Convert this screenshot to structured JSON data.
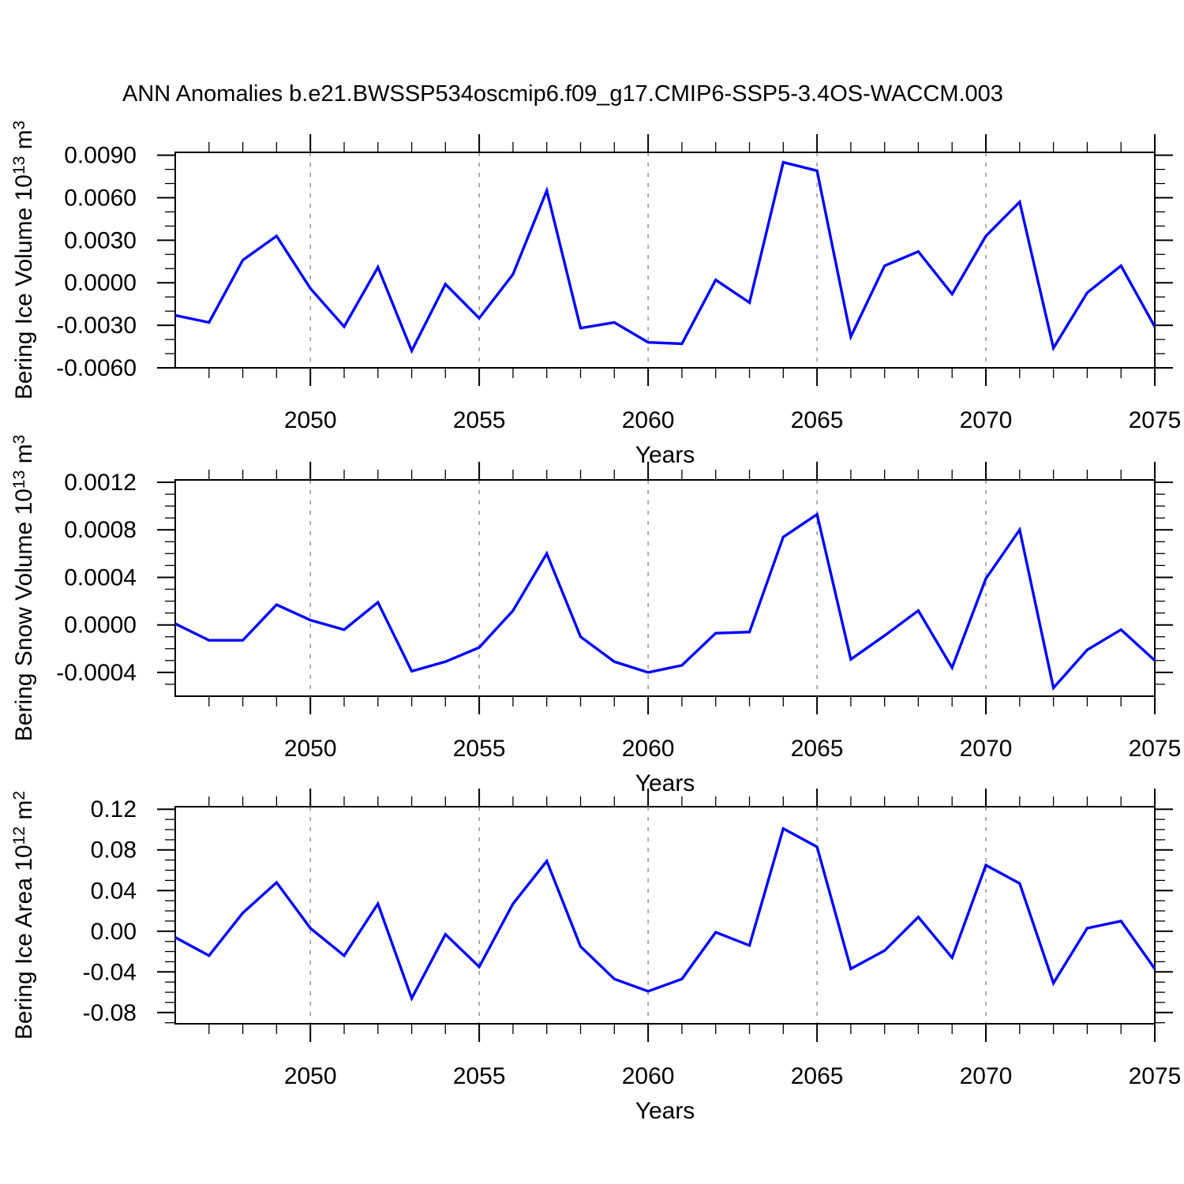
{
  "chart_data": {
    "type": "line",
    "title": "ANN Anomalies b.e21.BWSSP534oscmip6.f09_g17.CMIP6-SSP5-3.4OS-WACCM.003",
    "xlabel": "Years",
    "legend": "none",
    "grid": "vertical-dashed-only",
    "x": [
      2046,
      2047,
      2048,
      2049,
      2050,
      2051,
      2052,
      2053,
      2054,
      2055,
      2056,
      2057,
      2058,
      2059,
      2060,
      2061,
      2062,
      2063,
      2064,
      2065,
      2066,
      2067,
      2068,
      2069,
      2070,
      2071,
      2072,
      2073,
      2074,
      2075
    ],
    "x_axis": {
      "xlim": [
        2046,
        2075
      ],
      "major_ticks": [
        2050,
        2055,
        2060,
        2065,
        2070,
        2075
      ],
      "minor_step_years": 1,
      "gridlines": [
        2050,
        2055,
        2060,
        2065,
        2070
      ]
    },
    "style": {
      "line_color": "#0000ff",
      "grid_color": "#8c8c8c",
      "axis_color": "#000000",
      "background": "#ffffff"
    },
    "panels": [
      {
        "name": "bering-ice-volume",
        "ylabel": "Bering Ice Volume 10^13 m^3",
        "ylabel_parts": [
          {
            "text": "Bering Ice Volume 10"
          },
          {
            "sup": "13"
          },
          {
            "text": " m"
          },
          {
            "sup": "3"
          }
        ],
        "ylim": [
          -0.006,
          0.0092
        ],
        "y_major_ticks": [
          0.009,
          0.006,
          0.003,
          0.0,
          -0.003,
          -0.006
        ],
        "y_minor_step": 0.001,
        "tick_decimals": 4,
        "series": [
          {
            "name": "ANN anomaly",
            "values": [
              -0.0023,
              -0.0028,
              0.0016,
              0.0033,
              -0.0004,
              -0.0031,
              0.0011,
              -0.0048,
              -0.0001,
              -0.0025,
              0.0006,
              0.0065,
              -0.0032,
              -0.0028,
              -0.0042,
              -0.0043,
              0.0002,
              -0.0014,
              0.0085,
              0.0079,
              -0.0038,
              0.0012,
              0.0022,
              -0.0008,
              0.0033,
              0.0057,
              -0.0046,
              -0.0007,
              0.0012,
              -0.0031
            ]
          }
        ]
      },
      {
        "name": "bering-snow-volume",
        "ylabel": "Bering Snow Volume 10^13 m^3",
        "ylabel_parts": [
          {
            "text": "Bering Snow Volume 10"
          },
          {
            "sup": "13"
          },
          {
            "text": " m"
          },
          {
            "sup": "3"
          }
        ],
        "ylim": [
          -0.0006,
          0.00122
        ],
        "y_major_ticks": [
          0.0012,
          0.0008,
          0.0004,
          0.0,
          -0.0004
        ],
        "y_minor_step": 0.0001,
        "tick_decimals": 4,
        "series": [
          {
            "name": "ANN anomaly",
            "values": [
              1e-05,
              -0.00013,
              -0.00013,
              0.00017,
              4e-05,
              -4e-05,
              0.00019,
              -0.00039,
              -0.00031,
              -0.00019,
              0.00012,
              0.0006,
              -0.0001,
              -0.00031,
              -0.0004,
              -0.00034,
              -7e-05,
              -6e-05,
              0.00074,
              0.00093,
              -0.00029,
              -9e-05,
              0.00012,
              -0.00036,
              0.00039,
              0.0008,
              -0.00053,
              -0.00021,
              -4e-05,
              -0.0003
            ]
          }
        ]
      },
      {
        "name": "bering-ice-area",
        "ylabel": "Bering Ice Area 10^12 m^2",
        "ylabel_parts": [
          {
            "text": "Bering Ice Area 10"
          },
          {
            "sup": "12"
          },
          {
            "text": " m"
          },
          {
            "sup": "2"
          }
        ],
        "ylim": [
          -0.091,
          0.1225
        ],
        "y_major_ticks": [
          0.12,
          0.08,
          0.04,
          0.0,
          -0.04,
          -0.08
        ],
        "y_minor_step": 0.01,
        "tick_decimals": 2,
        "series": [
          {
            "name": "ANN anomaly",
            "values": [
              -0.006,
              -0.024,
              0.018,
              0.048,
              0.003,
              -0.024,
              0.027,
              -0.066,
              -0.003,
              -0.035,
              0.027,
              0.069,
              -0.015,
              -0.047,
              -0.059,
              -0.047,
              -0.001,
              -0.014,
              0.101,
              0.083,
              -0.037,
              -0.019,
              0.014,
              -0.026,
              0.065,
              0.047,
              -0.051,
              0.003,
              0.01,
              -0.037
            ]
          }
        ]
      }
    ]
  }
}
